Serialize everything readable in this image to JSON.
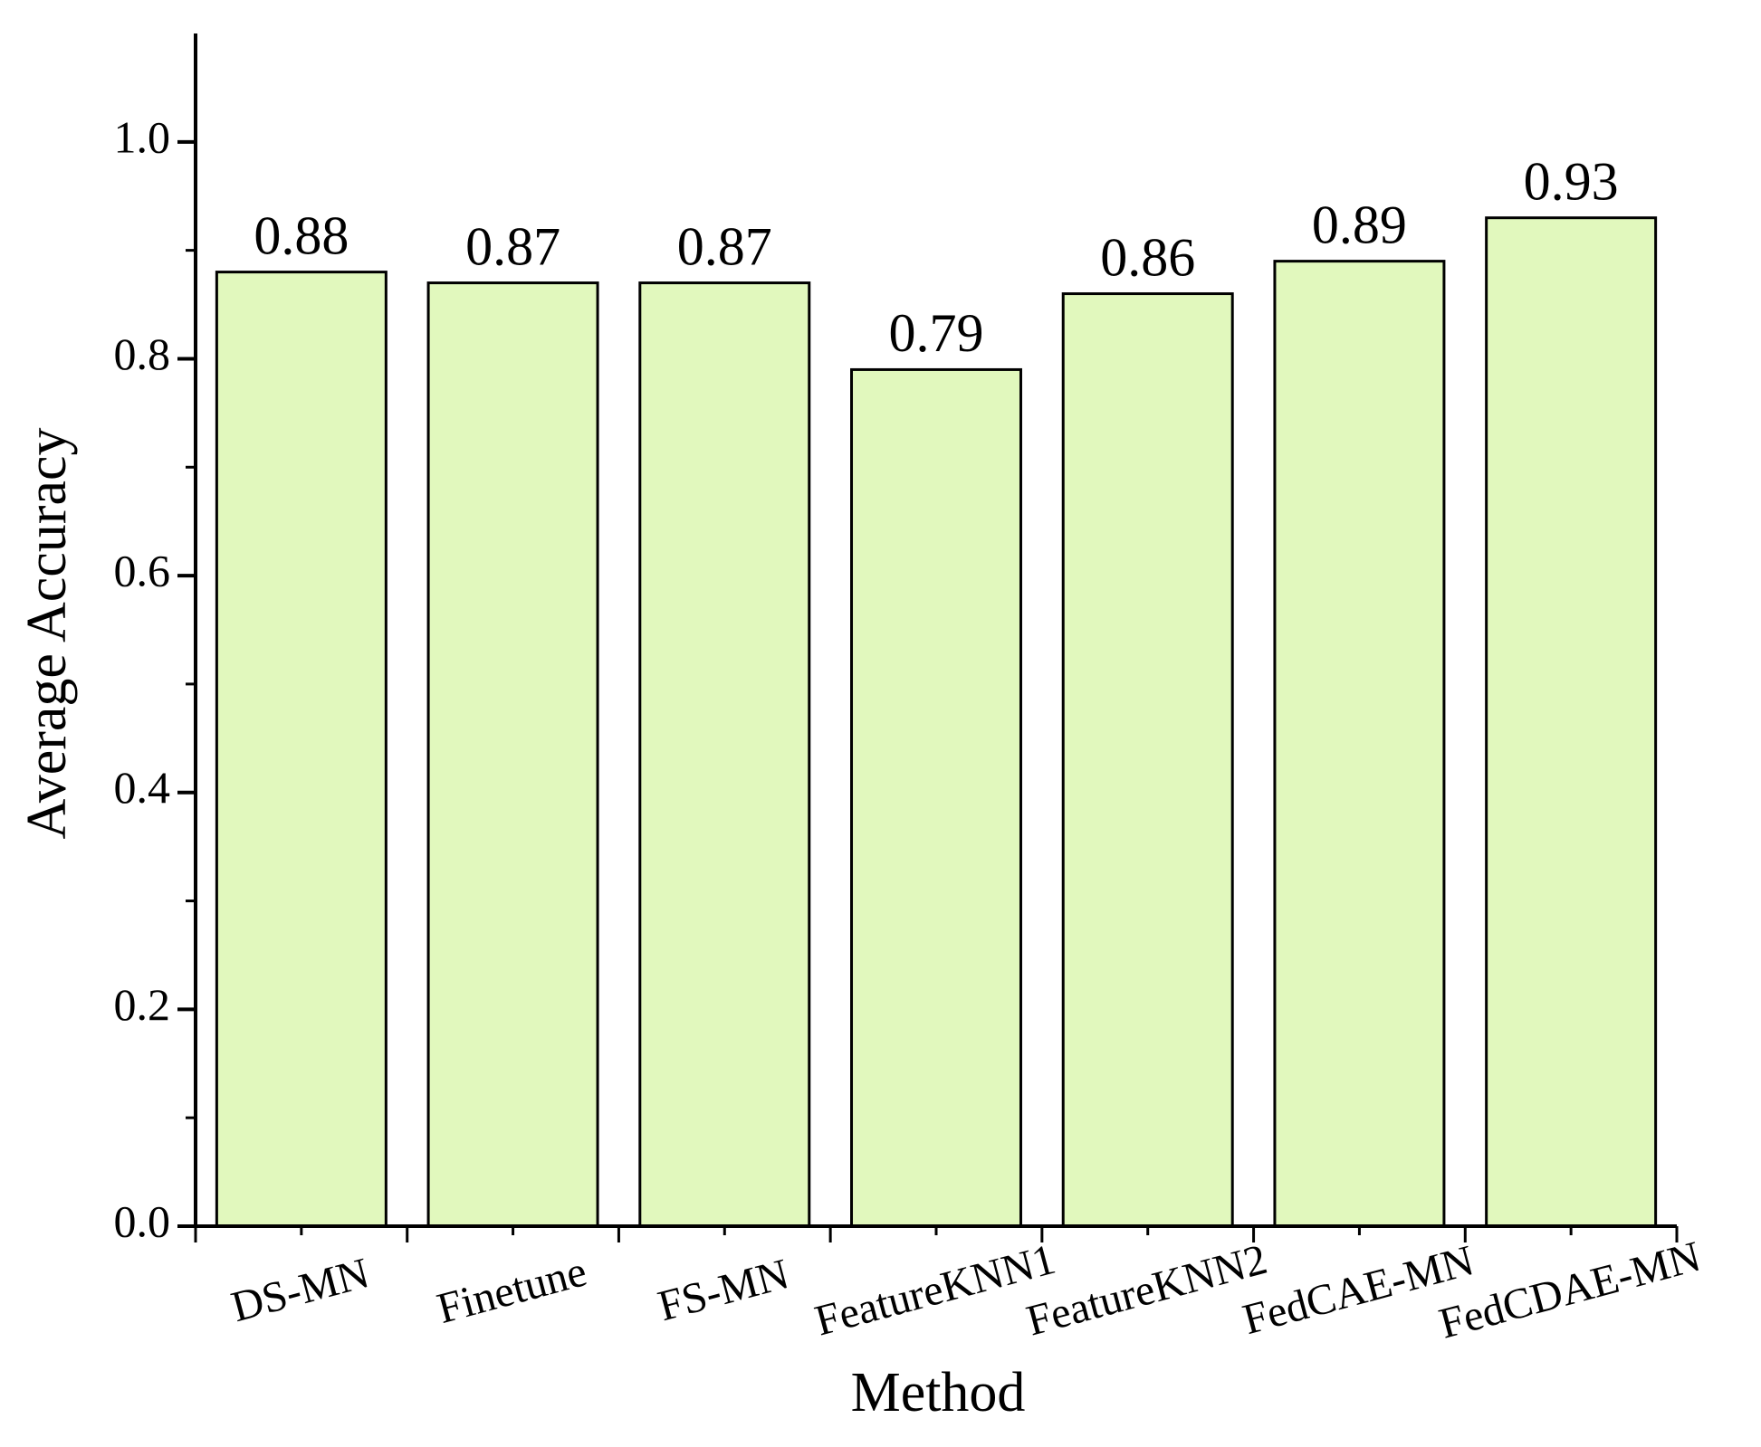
{
  "chart_data": {
    "type": "bar",
    "x_label": "Method",
    "y_label": "Average Accuracy",
    "categories": [
      "DS-MN",
      "Finetune",
      "FS-MN",
      "FeatureKNN1",
      "FeatureKNN2",
      "FedCAE-MN",
      "FedCDAE-MN"
    ],
    "values": [
      0.88,
      0.87,
      0.87,
      0.79,
      0.86,
      0.89,
      0.93
    ],
    "color": "#e1f8bd",
    "ylim": [
      0,
      1.1
    ],
    "yticks": [
      {
        "value": 0,
        "label": "0.0"
      },
      {
        "value": 0.2,
        "label": "0.2"
      },
      {
        "value": 0.4,
        "label": "0.4"
      },
      {
        "value": 0.6,
        "label": "0.6"
      },
      {
        "value": 0.8,
        "label": "0.8"
      },
      {
        "value": 1,
        "label": "1.0"
      }
    ],
    "grid": false
  }
}
